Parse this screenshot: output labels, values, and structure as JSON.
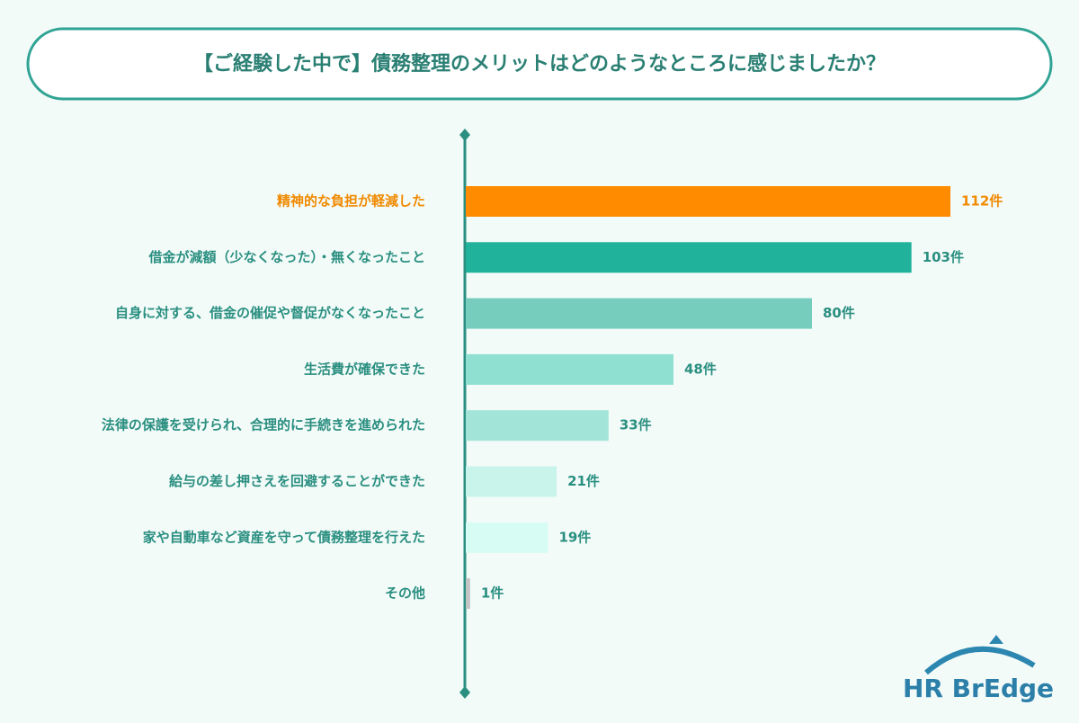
{
  "chart_data": {
    "type": "bar",
    "orientation": "horizontal",
    "title": "【ご経験した中で】債務整理のメリットはどのようなところに感じましたか？",
    "categories": [
      "精神的な負担が軽減した",
      "借金が減額（少なくなった）・無くなったこと",
      "自身に対する、借金の催促や督促がなくなったこと",
      "生活費が確保できた",
      "法律の保護を受けられ、合理的に手続きを進められた",
      "給与の差し押さえを回避することができた",
      "家や自動車など資産を守って債務整理を行えた",
      "その他"
    ],
    "values": [
      112,
      103,
      80,
      48,
      33,
      21,
      19,
      1
    ],
    "value_labels": [
      "112件",
      "103件",
      "80件",
      "48件",
      "33件",
      "21件",
      "19件",
      "1件"
    ],
    "colors": [
      "#ff8c00",
      "#20b29a",
      "#76cdbd",
      "#8fe0d1",
      "#a2e5d8",
      "#c9f4ec",
      "#d7fcf4",
      "#c4c4c4"
    ],
    "text_color": "#2a8f80",
    "highlight_index": 0,
    "highlight_color": "#f08a00",
    "logo": "HR BrEdge"
  }
}
